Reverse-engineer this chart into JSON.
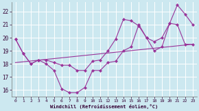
{
  "xlabel": "Windchill (Refroidissement éolien,°C)",
  "bg_color": "#cce8f0",
  "grid_color": "#ffffff",
  "line_color": "#993399",
  "marker": "D",
  "marker_size": 2.2,
  "line_width": 0.8,
  "xlim": [
    -0.5,
    23.5
  ],
  "ylim": [
    15.5,
    22.7
  ],
  "xticks": [
    0,
    1,
    2,
    3,
    4,
    5,
    6,
    7,
    8,
    9,
    10,
    11,
    12,
    13,
    14,
    15,
    16,
    17,
    18,
    19,
    20,
    21,
    22,
    23
  ],
  "yticks": [
    16,
    17,
    18,
    19,
    20,
    21,
    22
  ],
  "line1_x": [
    0,
    1,
    2,
    3,
    4,
    5,
    6,
    7,
    8,
    9,
    10,
    11,
    12,
    13,
    14,
    15,
    16,
    17,
    18,
    19,
    20,
    21,
    22,
    23
  ],
  "line1_y": [
    19.9,
    18.8,
    18.0,
    18.3,
    18.3,
    18.1,
    17.9,
    17.9,
    17.5,
    17.5,
    18.2,
    18.3,
    19.0,
    19.9,
    21.4,
    21.3,
    20.9,
    20.0,
    19.7,
    20.0,
    21.1,
    22.5,
    21.8,
    21.0
  ],
  "line2_x": [
    0,
    1,
    2,
    3,
    4,
    5,
    6,
    7,
    8,
    9,
    10,
    11,
    12,
    13,
    14,
    15,
    16,
    17,
    18,
    19,
    20,
    21,
    22,
    23
  ],
  "line2_y": [
    19.9,
    18.8,
    18.0,
    18.3,
    18.0,
    17.5,
    16.1,
    15.8,
    15.8,
    16.2,
    17.5,
    17.5,
    18.1,
    18.2,
    19.0,
    19.3,
    21.0,
    20.0,
    19.0,
    19.3,
    21.1,
    21.0,
    19.5,
    19.5
  ],
  "line3_x": [
    0,
    23
  ],
  "line3_y": [
    18.1,
    19.5
  ]
}
